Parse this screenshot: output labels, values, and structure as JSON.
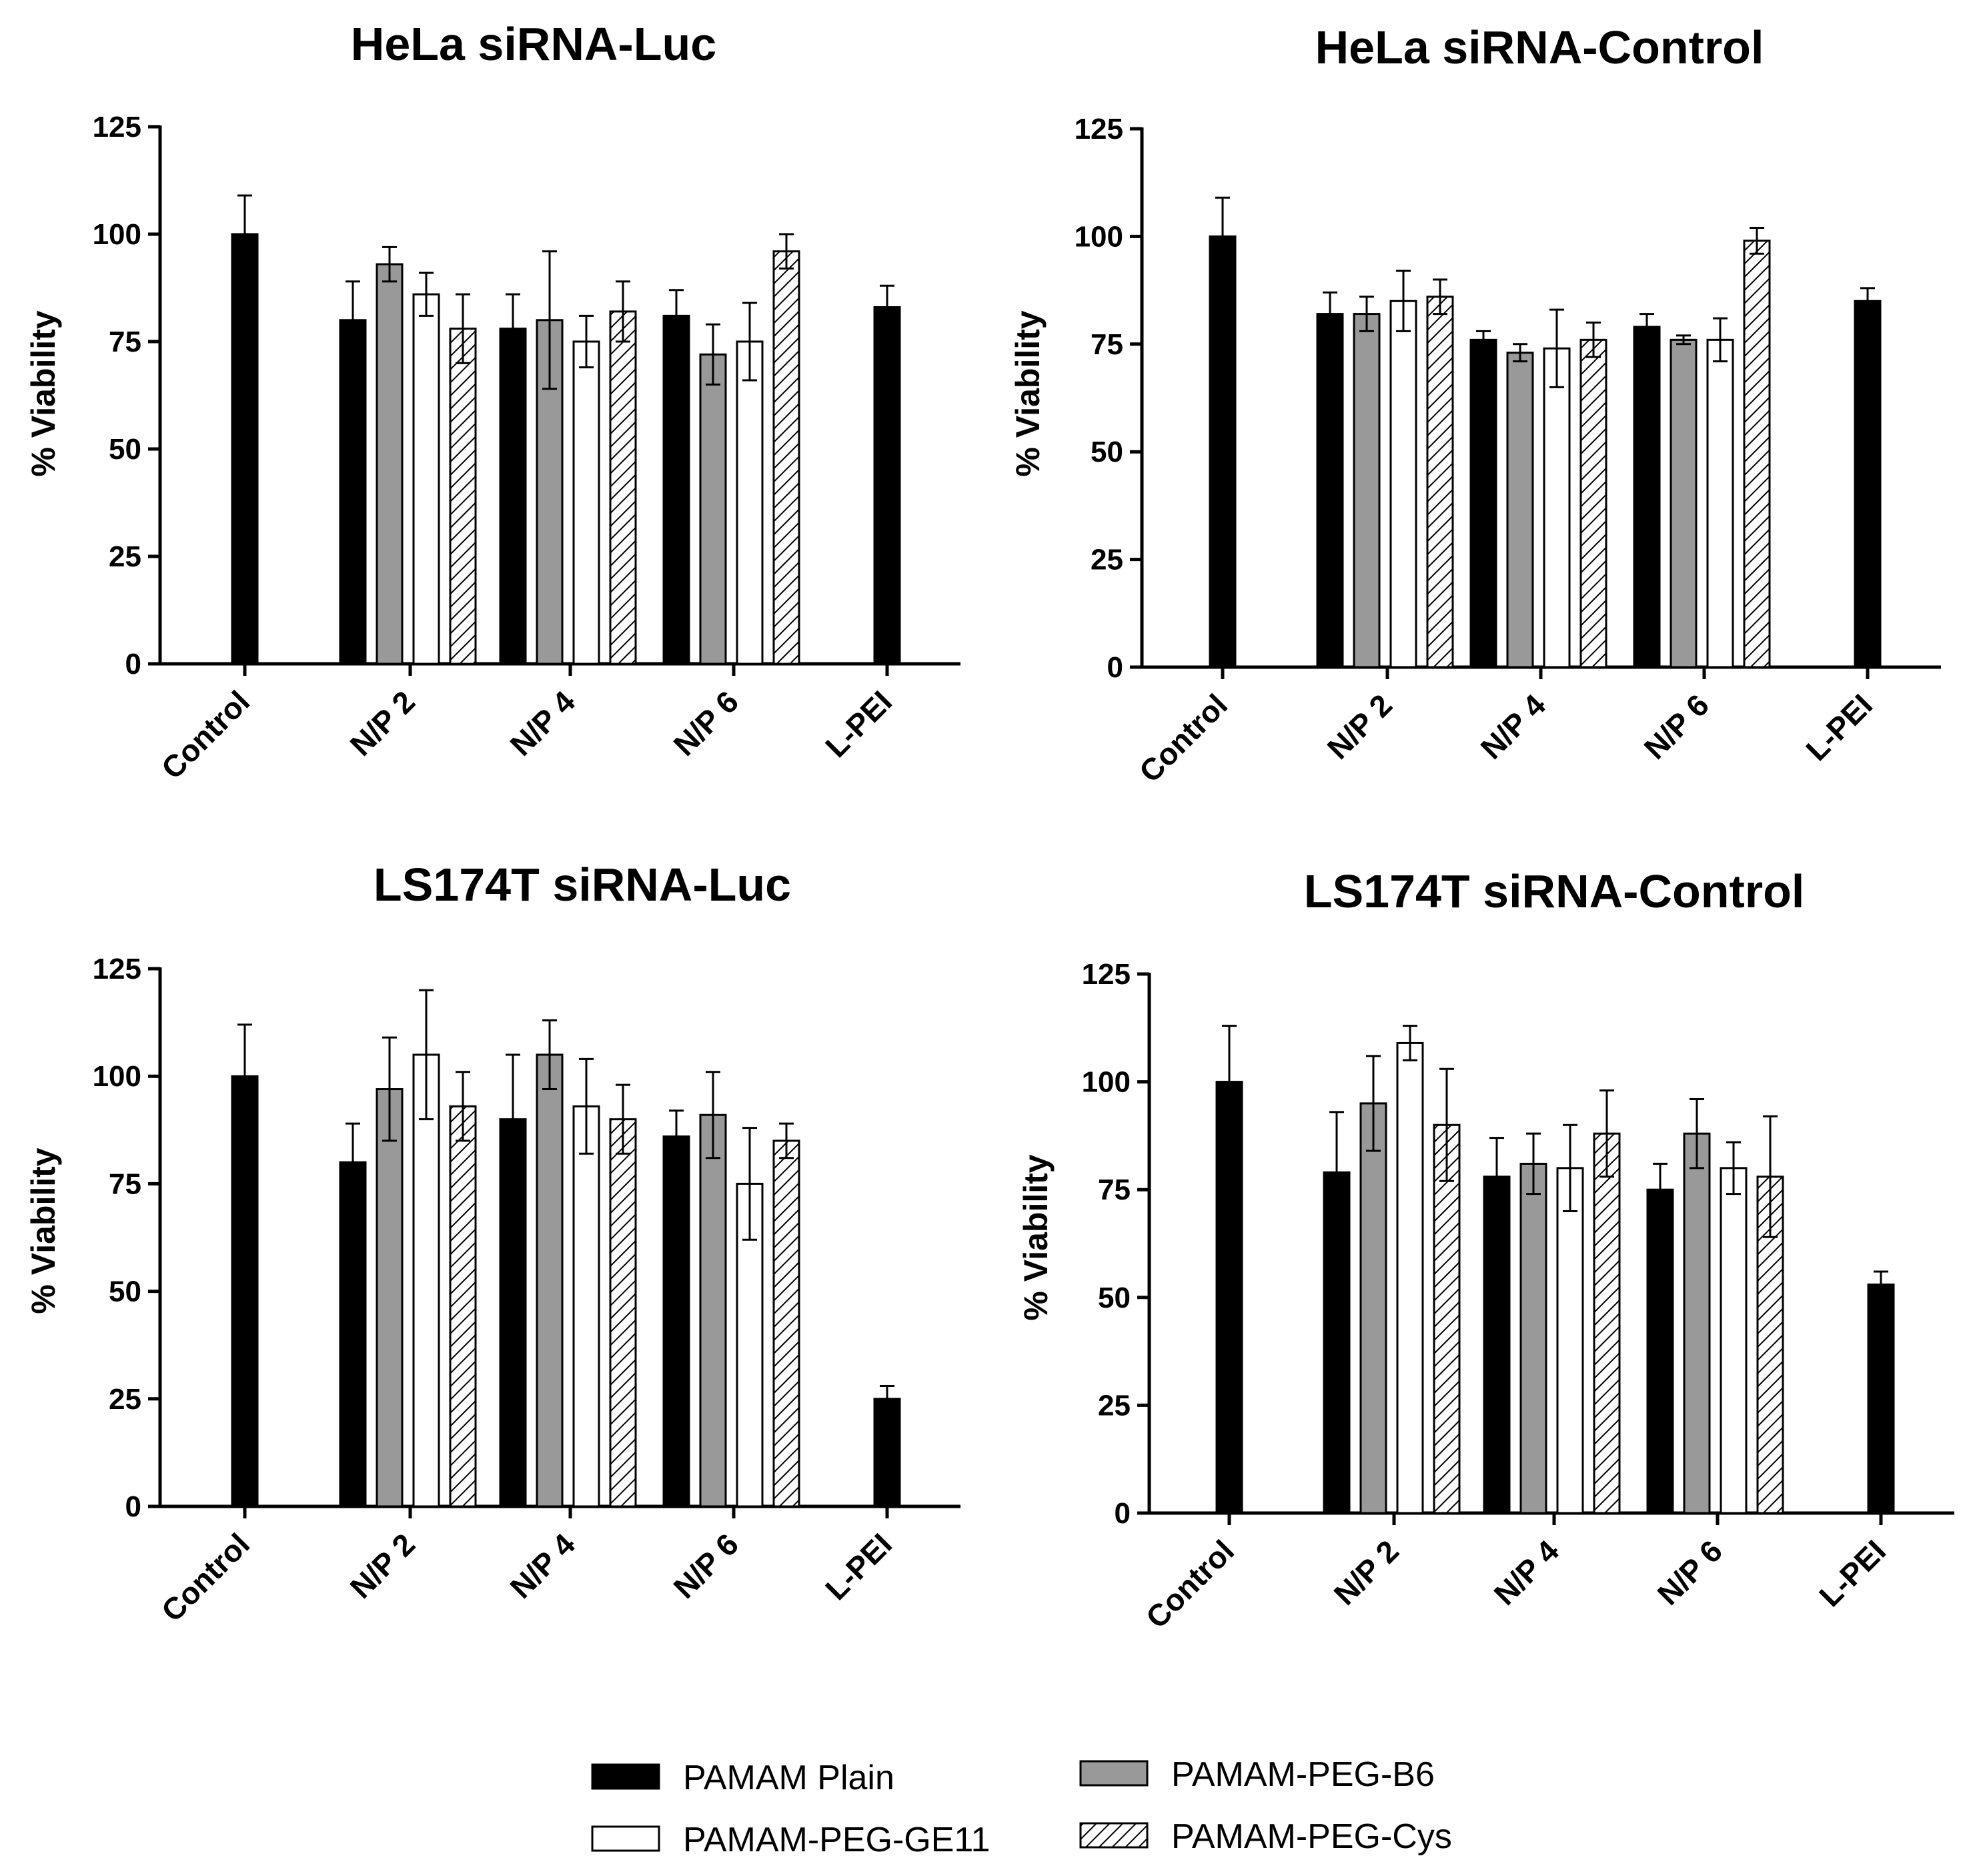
{
  "legend": [
    {
      "key": "plain",
      "label": "PAMAM Plain",
      "fill": "#000000"
    },
    {
      "key": "b6",
      "label": "PAMAM-PEG-B6",
      "fill": "#999999"
    },
    {
      "key": "ge11",
      "label": "PAMAM-PEG-GE11",
      "fill": "#ffffff"
    },
    {
      "key": "cys",
      "label": "PAMAM-PEG-Cys",
      "fill": "hatch"
    }
  ],
  "chart_data": [
    {
      "type": "bar",
      "title": "HeLa siRNA-Luc",
      "ylabel": "% Viability",
      "xlabel": "",
      "ylim": [
        0,
        125
      ],
      "yticks": [
        0,
        25,
        50,
        75,
        100,
        125
      ],
      "categories": [
        "Control",
        "N/P 2",
        "N/P 4",
        "N/P 6",
        "L-PEI"
      ],
      "series": [
        {
          "name": "PAMAM Plain",
          "values": [
            100,
            80,
            78,
            81,
            83
          ],
          "errors": [
            9,
            9,
            8,
            6,
            5
          ]
        },
        {
          "name": "PAMAM-PEG-B6",
          "values": [
            null,
            93,
            80,
            72,
            null
          ],
          "errors": [
            null,
            4,
            16,
            7,
            null
          ]
        },
        {
          "name": "PAMAM-PEG-GE11",
          "values": [
            null,
            86,
            75,
            75,
            null
          ],
          "errors": [
            null,
            5,
            6,
            9,
            null
          ]
        },
        {
          "name": "PAMAM-PEG-Cys",
          "values": [
            null,
            78,
            82,
            96,
            null
          ],
          "errors": [
            null,
            8,
            7,
            4,
            null
          ]
        }
      ]
    },
    {
      "type": "bar",
      "title": "HeLa siRNA-Control",
      "ylabel": "% Viability",
      "xlabel": "",
      "ylim": [
        0,
        125
      ],
      "yticks": [
        0,
        25,
        50,
        75,
        100,
        125
      ],
      "categories": [
        "Control",
        "N/P 2",
        "N/P 4",
        "N/P 6",
        "L-PEI"
      ],
      "series": [
        {
          "name": "PAMAM Plain",
          "values": [
            100,
            82,
            76,
            79,
            85
          ],
          "errors": [
            9,
            5,
            2,
            3,
            3
          ]
        },
        {
          "name": "PAMAM-PEG-B6",
          "values": [
            null,
            82,
            73,
            76,
            null
          ],
          "errors": [
            null,
            4,
            2,
            1,
            null
          ]
        },
        {
          "name": "PAMAM-PEG-GE11",
          "values": [
            null,
            85,
            74,
            76,
            null
          ],
          "errors": [
            null,
            7,
            9,
            5,
            null
          ]
        },
        {
          "name": "PAMAM-PEG-Cys",
          "values": [
            null,
            86,
            76,
            99,
            null
          ],
          "errors": [
            null,
            4,
            4,
            3,
            null
          ]
        }
      ]
    },
    {
      "type": "bar",
      "title": "LS174T siRNA-Luc",
      "ylabel": "% Viability",
      "xlabel": "",
      "ylim": [
        0,
        125
      ],
      "yticks": [
        0,
        25,
        50,
        75,
        100,
        125
      ],
      "categories": [
        "Control",
        "N/P 2",
        "N/P 4",
        "N/P 6",
        "L-PEI"
      ],
      "series": [
        {
          "name": "PAMAM Plain",
          "values": [
            100,
            80,
            90,
            86,
            25
          ],
          "errors": [
            12,
            9,
            15,
            6,
            3
          ]
        },
        {
          "name": "PAMAM-PEG-B6",
          "values": [
            null,
            97,
            105,
            91,
            null
          ],
          "errors": [
            null,
            12,
            8,
            10,
            null
          ]
        },
        {
          "name": "PAMAM-PEG-GE11",
          "values": [
            null,
            105,
            93,
            75,
            null
          ],
          "errors": [
            null,
            15,
            11,
            13,
            null
          ]
        },
        {
          "name": "PAMAM-PEG-Cys",
          "values": [
            null,
            93,
            90,
            85,
            null
          ],
          "errors": [
            null,
            8,
            8,
            4,
            null
          ]
        }
      ]
    },
    {
      "type": "bar",
      "title": "LS174T siRNA-Control",
      "ylabel": "% Viability",
      "xlabel": "",
      "ylim": [
        0,
        125
      ],
      "yticks": [
        0,
        25,
        50,
        75,
        100,
        125
      ],
      "categories": [
        "Control",
        "N/P 2",
        "N/P 4",
        "N/P 6",
        "L-PEI"
      ],
      "series": [
        {
          "name": "PAMAM Plain",
          "values": [
            100,
            79,
            78,
            75,
            53
          ],
          "errors": [
            13,
            14,
            9,
            6,
            3
          ]
        },
        {
          "name": "PAMAM-PEG-B6",
          "values": [
            null,
            95,
            81,
            88,
            null
          ],
          "errors": [
            null,
            11,
            7,
            8,
            null
          ]
        },
        {
          "name": "PAMAM-PEG-GE11",
          "values": [
            null,
            109,
            80,
            80,
            null
          ],
          "errors": [
            null,
            4,
            10,
            6,
            null
          ]
        },
        {
          "name": "PAMAM-PEG-Cys",
          "values": [
            null,
            90,
            88,
            78,
            null
          ],
          "errors": [
            null,
            13,
            10,
            14,
            null
          ]
        }
      ]
    }
  ]
}
